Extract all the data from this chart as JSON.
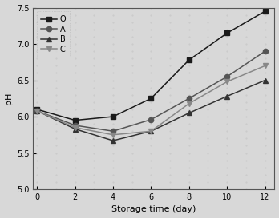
{
  "x": [
    0,
    2,
    4,
    6,
    8,
    10,
    12
  ],
  "series": {
    "O": [
      6.1,
      5.95,
      6.0,
      6.25,
      6.78,
      7.15,
      7.45
    ],
    "A": [
      6.08,
      5.88,
      5.8,
      5.96,
      6.25,
      6.55,
      6.9
    ],
    "B": [
      6.08,
      5.83,
      5.67,
      5.8,
      6.05,
      6.28,
      6.5
    ],
    "C": [
      6.08,
      5.85,
      5.75,
      5.8,
      6.18,
      6.48,
      6.7
    ]
  },
  "markers": {
    "O": "s",
    "A": "o",
    "B": "^",
    "C": "v"
  },
  "colors": {
    "O": "#1a1a1a",
    "A": "#555555",
    "B": "#333333",
    "C": "#888888"
  },
  "xlabel": "Storage time (day)",
  "ylabel": "pH",
  "ylim": [
    5.0,
    7.5
  ],
  "xlim": [
    -0.2,
    12.5
  ],
  "yticks": [
    5.0,
    5.5,
    6.0,
    6.5,
    7.0,
    7.5
  ],
  "xticks": [
    0,
    2,
    4,
    6,
    8,
    10,
    12
  ],
  "legend_order": [
    "O",
    "A",
    "B",
    "C"
  ],
  "background_color": "#e8e8e8",
  "dot_pattern": true
}
